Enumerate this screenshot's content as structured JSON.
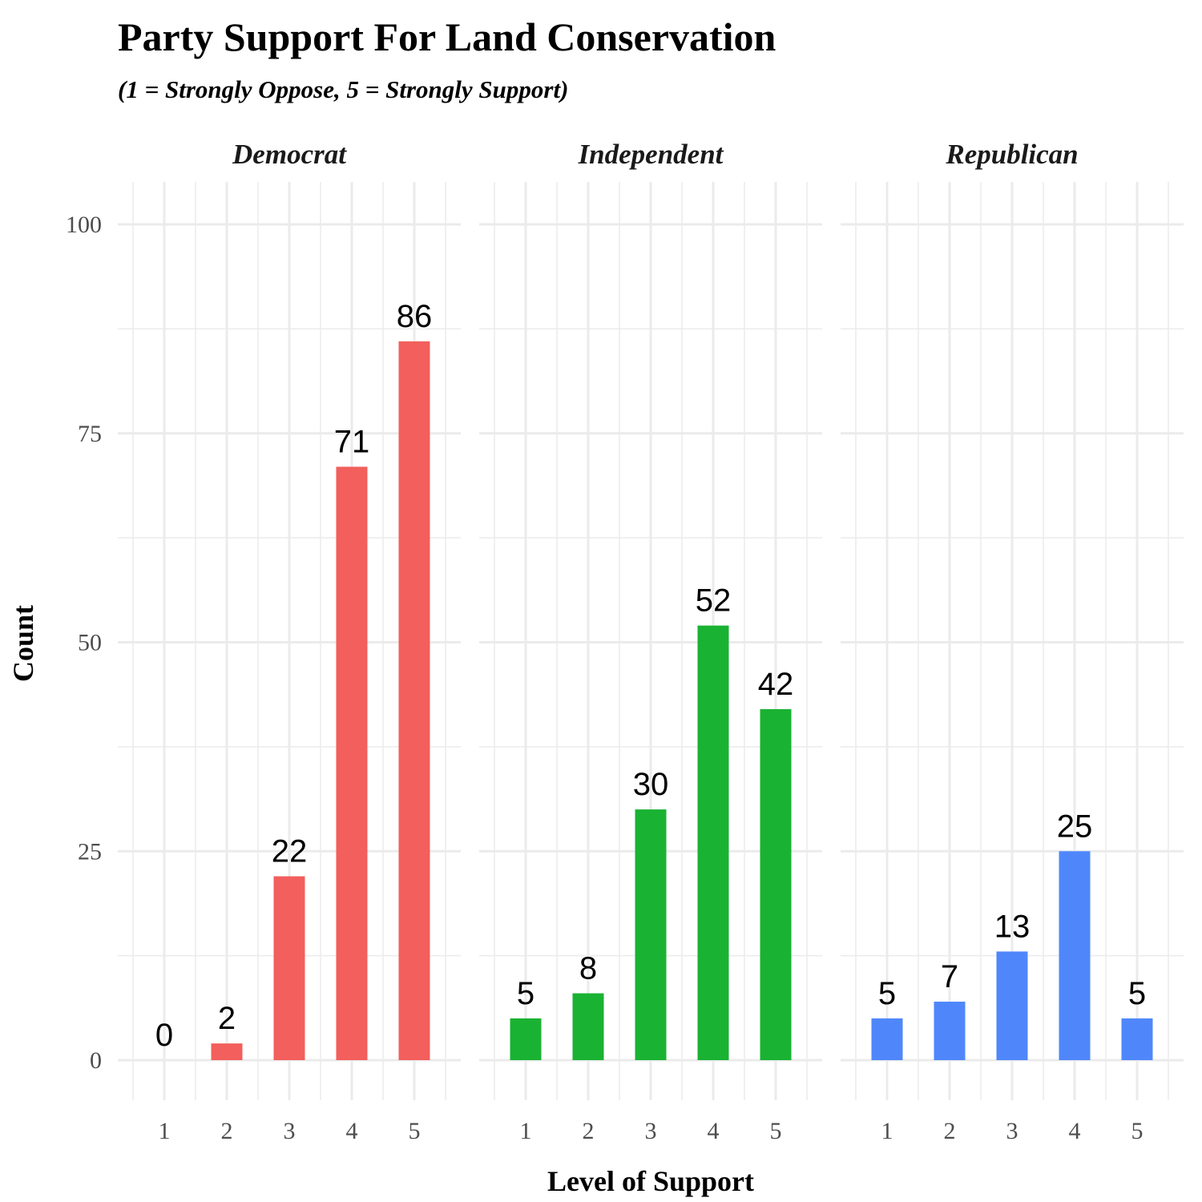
{
  "chart_data": {
    "type": "bar",
    "title": "Party Support For Land Conservation",
    "subtitle": "(1 = Strongly Oppose, 5 = Strongly Support)",
    "xlabel": "Level of Support",
    "ylabel": "Count",
    "categories": [
      "1",
      "2",
      "3",
      "4",
      "5"
    ],
    "ylim": [
      0,
      100
    ],
    "y_ticks": [
      "0",
      "25",
      "50",
      "75",
      "100"
    ],
    "grid": true,
    "legend": "none",
    "facets": [
      {
        "name": "Democrat",
        "color": "#F25F5C",
        "values": [
          0,
          2,
          22,
          71,
          86
        ]
      },
      {
        "name": "Independent",
        "color": "#1AB233",
        "values": [
          5,
          8,
          30,
          52,
          42
        ]
      },
      {
        "name": "Republican",
        "color": "#4F87FB",
        "values": [
          5,
          7,
          13,
          25,
          5
        ]
      }
    ]
  }
}
